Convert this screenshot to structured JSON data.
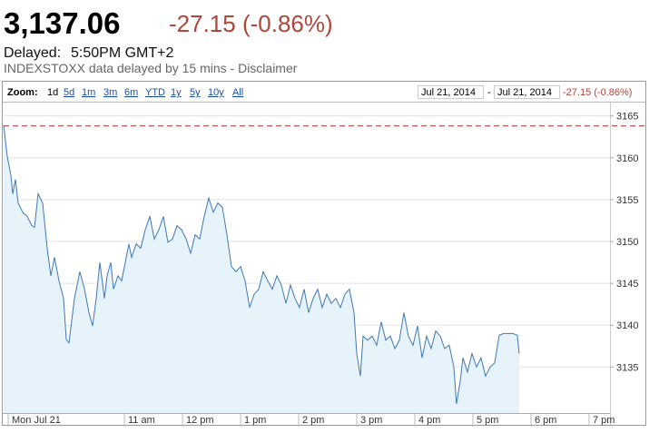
{
  "header": {
    "price": "3,137.06",
    "change": "-27.15 (-0.86%)",
    "delayed_label": "Delayed:",
    "delayed_time": "5:50PM GMT+2",
    "source": "INDEXSTOXX data delayed by 15 mins - Disclaimer"
  },
  "toolbar": {
    "zoom_label": "Zoom:",
    "zoom_options": [
      "1d",
      "5d",
      "1m",
      "3m",
      "6m",
      "YTD",
      "1y",
      "5y",
      "10y",
      "All"
    ],
    "date_from": "Jul 21, 2014",
    "separator": "-",
    "date_to": "Jul 21, 2014",
    "range_change": "-27.15 (-0.86%)"
  },
  "chart_data": {
    "type": "area",
    "color": "#3f78b5",
    "fill": "#e6f3fb",
    "grid": true,
    "reference_line": 3163.8,
    "reference_color": "#a0282d",
    "xlim": [
      -4.7,
      621.6
    ],
    "ylim": [
      3129.5,
      3166.6
    ],
    "xticks": [
      {
        "value": 0,
        "label": "Mon Jul 21"
      },
      {
        "value": 120,
        "label": "11 am"
      },
      {
        "value": 180,
        "label": "12 pm"
      },
      {
        "value": 240,
        "label": "1 pm"
      },
      {
        "value": 300,
        "label": "2 pm"
      },
      {
        "value": 360,
        "label": "3 pm"
      },
      {
        "value": 420,
        "label": "4 pm"
      },
      {
        "value": 480,
        "label": "5 pm"
      },
      {
        "value": 540,
        "label": "6 pm"
      },
      {
        "value": 600,
        "label": "7 pm"
      }
    ],
    "yticks": [
      3135,
      3140,
      3145,
      3150,
      3155,
      3160,
      3165
    ],
    "x": [
      -4.7,
      -0.9,
      2.8,
      4.7,
      7.5,
      10.3,
      15,
      19.7,
      24.4,
      27.2,
      30.9,
      35.6,
      40.3,
      44.1,
      47.8,
      52.5,
      57.2,
      60,
      62.8,
      68.4,
      74.1,
      78.8,
      83.4,
      87.2,
      90.9,
      94.7,
      99.4,
      102.2,
      105.9,
      108.8,
      113.4,
      117.2,
      120.9,
      124.7,
      127.5,
      132.2,
      136.9,
      141.6,
      146.3,
      150.9,
      155.6,
      160.3,
      165,
      169.7,
      174.4,
      179.1,
      183.8,
      188.4,
      193.1,
      197.8,
      202.5,
      207.2,
      211.9,
      216.6,
      221.3,
      225.9,
      230.6,
      235.3,
      240,
      244.7,
      249.4,
      254.1,
      258.8,
      263.4,
      268.1,
      272.8,
      277.5,
      282.2,
      286.9,
      291.6,
      296.3,
      300.9,
      305.6,
      310.3,
      315,
      319.7,
      324.4,
      329.1,
      333.8,
      338.4,
      343.1,
      347.8,
      352.5,
      357.2,
      360,
      363.8,
      366.6,
      371.3,
      375.9,
      380.6,
      385.3,
      390,
      394.7,
      399.4,
      404.1,
      408.8,
      413.4,
      418.1,
      422.8,
      427.5,
      432.2,
      436.9,
      441.6,
      446.3,
      450.9,
      455.6,
      460.3,
      463.1,
      466.9,
      469.7,
      474.4,
      479.1,
      483.8,
      488.4,
      493.1,
      497.8,
      502.5,
      507.2,
      511.9,
      516.6,
      521.3,
      525.9,
      527.8
    ],
    "values": [
      3163.9,
      3160.1,
      3157.9,
      3155.7,
      3157.4,
      3154.6,
      3153.5,
      3153.0,
      3151.9,
      3151.7,
      3155.7,
      3154.6,
      3149.2,
      3145.9,
      3148.1,
      3145.3,
      3143.2,
      3138.3,
      3137.9,
      3143.2,
      3146.4,
      3144.3,
      3141.5,
      3139.9,
      3143.2,
      3147.5,
      3143.2,
      3145.9,
      3147.5,
      3144.3,
      3145.9,
      3145.3,
      3147.5,
      3149.7,
      3148.1,
      3149.7,
      3149.2,
      3151.4,
      3153.0,
      3150.3,
      3151.4,
      3153.0,
      3149.9,
      3150.3,
      3151.9,
      3151.4,
      3150.3,
      3148.6,
      3150.8,
      3150.3,
      3153.0,
      3155.2,
      3153.5,
      3154.6,
      3154.1,
      3150.8,
      3147.0,
      3146.4,
      3147.0,
      3145.3,
      3142.1,
      3143.7,
      3144.3,
      3146.4,
      3145.3,
      3144.3,
      3145.9,
      3144.8,
      3142.6,
      3144.8,
      3143.2,
      3142.1,
      3144.3,
      3141.5,
      3143.2,
      3144.3,
      3142.1,
      3143.7,
      3142.6,
      3143.2,
      3142.1,
      3143.7,
      3144.3,
      3141.5,
      3136.6,
      3133.9,
      3138.7,
      3138.2,
      3138.7,
      3137.6,
      3140.4,
      3138.2,
      3138.7,
      3137.2,
      3138.2,
      3141.5,
      3138.7,
      3137.6,
      3139.9,
      3136.1,
      3138.7,
      3137.2,
      3139.3,
      3138.7,
      3137.2,
      3137.6,
      3135.0,
      3130.6,
      3133.3,
      3136.1,
      3134.4,
      3136.6,
      3135.0,
      3136.1,
      3133.9,
      3135.0,
      3135.5,
      3138.8,
      3139.0,
      3139.0,
      3139.0,
      3138.8,
      3136.6
    ]
  }
}
